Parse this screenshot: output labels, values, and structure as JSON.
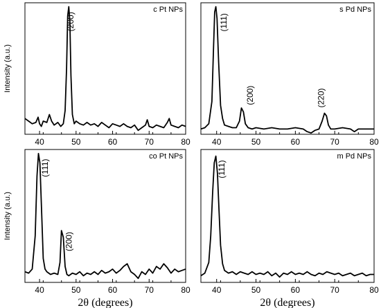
{
  "chart_data": [
    {
      "type": "line",
      "panel_label": "c Pt NPs",
      "xlim": [
        36,
        80
      ],
      "ylim": [
        0,
        1
      ],
      "xticks": [
        40,
        50,
        60,
        70,
        80
      ],
      "ylabel": "Intensity (a.u.)",
      "xlabel": "",
      "grid": false,
      "peak_labels": [
        {
          "text": "(200)",
          "x": 49.3,
          "y": 0.93
        }
      ],
      "series": [
        {
          "x": [
            36,
            37,
            38,
            39,
            39.6,
            40,
            40.5,
            41,
            42,
            42.7,
            43.3,
            44,
            45,
            45.8,
            46.5,
            47,
            47.4,
            47.7,
            48,
            48.3,
            48.6,
            49,
            49.5,
            50,
            51,
            52,
            53,
            54,
            55,
            56,
            57,
            58,
            59,
            60,
            61,
            62,
            63,
            64,
            65,
            66,
            67,
            68,
            69,
            69.5,
            70,
            71,
            72,
            73,
            74,
            75,
            75.5,
            76,
            77,
            78,
            79,
            80
          ],
          "y": [
            0.12,
            0.1,
            0.08,
            0.09,
            0.13,
            0.08,
            0.06,
            0.1,
            0.09,
            0.15,
            0.1,
            0.07,
            0.09,
            0.06,
            0.08,
            0.18,
            0.5,
            0.9,
            0.97,
            0.85,
            0.45,
            0.15,
            0.08,
            0.1,
            0.08,
            0.07,
            0.09,
            0.07,
            0.08,
            0.06,
            0.09,
            0.07,
            0.05,
            0.08,
            0.07,
            0.06,
            0.08,
            0.06,
            0.05,
            0.07,
            0.03,
            0.05,
            0.07,
            0.11,
            0.06,
            0.05,
            0.07,
            0.06,
            0.05,
            0.09,
            0.12,
            0.07,
            0.06,
            0.05,
            0.07,
            0.06
          ]
        }
      ]
    },
    {
      "type": "line",
      "panel_label": "s Pd NPs",
      "xlim": [
        36,
        80
      ],
      "ylim": [
        0,
        1
      ],
      "xticks": [
        40,
        50,
        60,
        70,
        80
      ],
      "ylabel": "",
      "xlabel": "",
      "grid": false,
      "peak_labels": [
        {
          "text": "(111)",
          "x": 42.5,
          "y": 0.92
        },
        {
          "text": "(200)",
          "x": 49.2,
          "y": 0.37
        },
        {
          "text": "(220)",
          "x": 67.2,
          "y": 0.35
        }
      ],
      "series": [
        {
          "x": [
            36,
            37,
            38,
            38.8,
            39.2,
            39.5,
            39.8,
            40.1,
            40.5,
            41,
            41.5,
            42,
            43,
            44,
            45,
            45.8,
            46.3,
            46.8,
            47.3,
            48,
            49,
            50,
            52,
            54,
            56,
            58,
            60,
            62,
            63,
            64,
            65,
            66,
            66.8,
            67.4,
            67.9,
            68.4,
            69,
            70,
            72,
            74,
            75,
            76,
            78,
            80
          ],
          "y": [
            0.04,
            0.05,
            0.08,
            0.25,
            0.65,
            0.93,
            0.97,
            0.88,
            0.55,
            0.22,
            0.12,
            0.07,
            0.06,
            0.05,
            0.05,
            0.1,
            0.2,
            0.17,
            0.08,
            0.05,
            0.04,
            0.05,
            0.04,
            0.05,
            0.04,
            0.04,
            0.05,
            0.04,
            0.02,
            0.01,
            0.03,
            0.04,
            0.1,
            0.16,
            0.14,
            0.07,
            0.04,
            0.04,
            0.05,
            0.04,
            0.02,
            0.04,
            0.04,
            0.04
          ]
        }
      ]
    },
    {
      "type": "line",
      "panel_label": "co Pt NPs",
      "xlim": [
        36,
        80
      ],
      "ylim": [
        0,
        1
      ],
      "xticks": [
        40,
        50,
        60,
        70,
        80
      ],
      "ylabel": "Intensity (a.u.)",
      "xlabel": "2θ (degrees)",
      "grid": false,
      "peak_labels": [
        {
          "text": "(111)",
          "x": 42.3,
          "y": 0.93
        },
        {
          "text": "(200)",
          "x": 48.8,
          "y": 0.38
        }
      ],
      "series": [
        {
          "x": [
            36,
            37,
            38,
            38.8,
            39.3,
            39.7,
            40.1,
            40.6,
            41,
            41.5,
            42,
            43,
            44,
            45,
            45.6,
            46,
            46.5,
            47,
            47.5,
            48,
            49,
            50,
            51,
            52,
            53,
            54,
            55,
            56,
            57,
            58,
            59,
            60,
            61,
            62,
            63,
            64,
            65,
            66,
            67,
            68,
            69,
            70,
            71,
            72,
            73,
            74,
            75,
            76,
            77,
            78,
            79,
            80
          ],
          "y": [
            0.08,
            0.07,
            0.1,
            0.35,
            0.8,
            0.97,
            0.9,
            0.5,
            0.18,
            0.1,
            0.08,
            0.06,
            0.07,
            0.06,
            0.15,
            0.39,
            0.34,
            0.12,
            0.06,
            0.05,
            0.07,
            0.06,
            0.08,
            0.05,
            0.07,
            0.06,
            0.08,
            0.06,
            0.09,
            0.07,
            0.08,
            0.1,
            0.07,
            0.09,
            0.12,
            0.14,
            0.08,
            0.06,
            0.03,
            0.08,
            0.06,
            0.1,
            0.07,
            0.12,
            0.1,
            0.14,
            0.11,
            0.07,
            0.1,
            0.08,
            0.09,
            0.1
          ]
        }
      ]
    },
    {
      "type": "line",
      "panel_label": "m Pd NPs",
      "xlim": [
        36,
        80
      ],
      "ylim": [
        0,
        1
      ],
      "xticks": [
        40,
        50,
        60,
        70,
        80
      ],
      "ylabel": "",
      "xlabel": "2θ (degrees)",
      "grid": false,
      "peak_labels": [
        {
          "text": "(111)",
          "x": 42.0,
          "y": 0.92
        }
      ],
      "series": [
        {
          "x": [
            36,
            37,
            38,
            38.5,
            39,
            39.4,
            39.8,
            40.2,
            40.6,
            41,
            41.5,
            42,
            43,
            44,
            45,
            46,
            47,
            48,
            49,
            50,
            51,
            52,
            53,
            54,
            55,
            56,
            57,
            58,
            59,
            60,
            61,
            62,
            63,
            64,
            65,
            66,
            67,
            68,
            69,
            70,
            71,
            72,
            73,
            74,
            75,
            76,
            77,
            78,
            79,
            80
          ],
          "y": [
            0.05,
            0.07,
            0.15,
            0.35,
            0.68,
            0.9,
            0.95,
            0.82,
            0.55,
            0.28,
            0.14,
            0.09,
            0.07,
            0.08,
            0.06,
            0.08,
            0.07,
            0.06,
            0.08,
            0.06,
            0.07,
            0.06,
            0.08,
            0.05,
            0.07,
            0.04,
            0.07,
            0.06,
            0.08,
            0.06,
            0.07,
            0.06,
            0.08,
            0.06,
            0.05,
            0.07,
            0.06,
            0.08,
            0.07,
            0.06,
            0.07,
            0.05,
            0.06,
            0.07,
            0.05,
            0.06,
            0.07,
            0.05,
            0.06,
            0.06
          ]
        }
      ]
    }
  ]
}
